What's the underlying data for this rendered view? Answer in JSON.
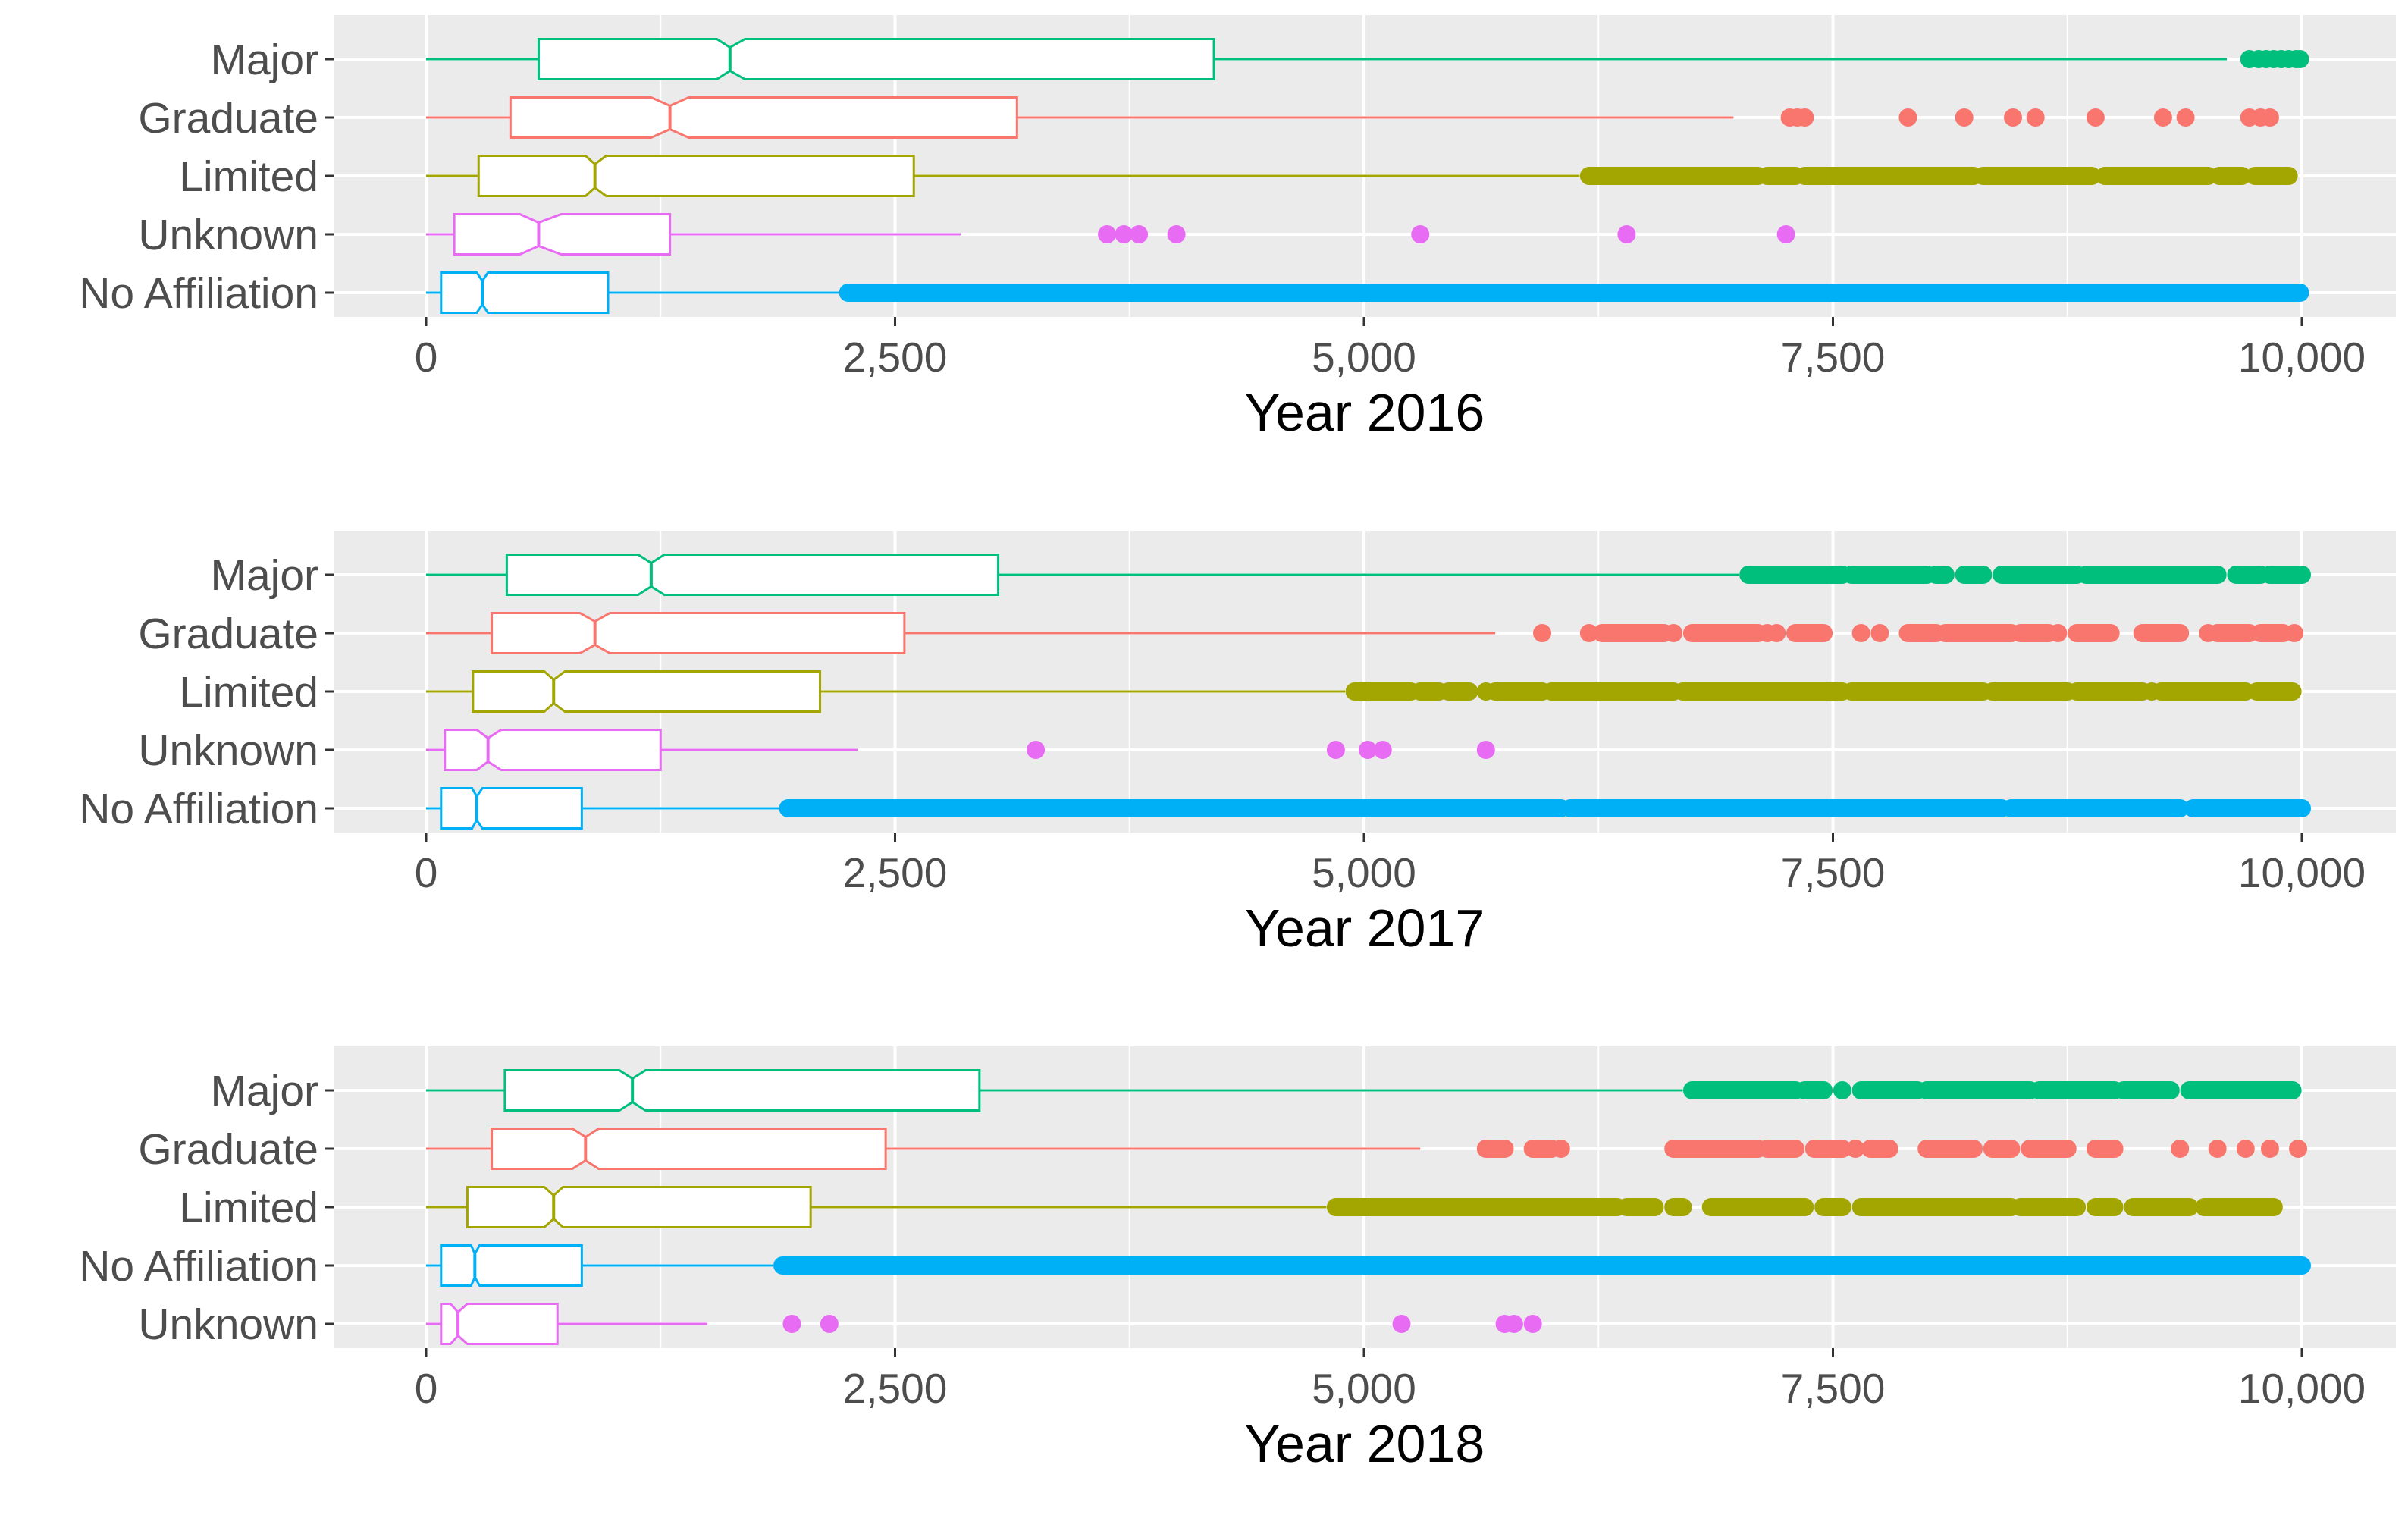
{
  "chart_data": [
    {
      "type": "boxplot",
      "orientation": "horizontal",
      "notched": true,
      "title": "",
      "xlabel": "Year 2016",
      "ylabel": "",
      "xlim": [
        0,
        10000
      ],
      "x_ticks": [
        0,
        2500,
        5000,
        7500,
        10000
      ],
      "x_tick_labels": [
        "0",
        "2,500",
        "5,000",
        "7,500",
        "10,000"
      ],
      "grid": true,
      "legend": "none",
      "categories": [
        "Major",
        "Graduate",
        "Limited",
        "Unknown",
        "No Affiliation"
      ],
      "series": [
        {
          "name": "Major",
          "color": "#00BF7D",
          "min": 0,
          "q1": 600,
          "median": 1620,
          "q3": 4200,
          "max": 9600,
          "notch": [
            1550,
            1700
          ],
          "outliers": [
            9720,
            9770,
            9810,
            9850,
            9890,
            9930,
            9970,
            9990
          ]
        },
        {
          "name": "Graduate",
          "color": "#F8766D",
          "min": 0,
          "q1": 450,
          "median": 1300,
          "q3": 3150,
          "max": 6970,
          "notch": [
            1200,
            1400
          ],
          "outliers": [
            7270,
            7310,
            7350,
            7900,
            8200,
            8460,
            8580,
            8900,
            9260,
            9380,
            9720,
            9780,
            9830
          ]
        },
        {
          "name": "Limited",
          "color": "#A3A500",
          "min": 0,
          "q1": 280,
          "median": 900,
          "q3": 2600,
          "max": 6150,
          "notch": [
            850,
            960
          ],
          "dense_outliers": [
            [
              6200,
              7100
            ],
            [
              7150,
              7300
            ],
            [
              7350,
              8250
            ],
            [
              8300,
              8880
            ],
            [
              8950,
              9500
            ],
            [
              9560,
              9680
            ],
            [
              9750,
              9930
            ]
          ]
        },
        {
          "name": "Unknown",
          "color": "#E76BF3",
          "min": 0,
          "q1": 150,
          "median": 600,
          "q3": 1300,
          "max": 2850,
          "notch": [
            500,
            720
          ],
          "outliers": [
            3630,
            3720,
            3800,
            4000,
            5300,
            6400,
            7250
          ]
        },
        {
          "name": "No Affiliation",
          "color": "#00B0F6",
          "min": 0,
          "q1": 80,
          "median": 300,
          "q3": 970,
          "max": 2200,
          "notch": [
            270,
            330
          ],
          "dense_outliers": [
            [
              2250,
              9990
            ]
          ]
        }
      ]
    },
    {
      "type": "boxplot",
      "orientation": "horizontal",
      "notched": true,
      "title": "",
      "xlabel": "Year 2017",
      "ylabel": "",
      "xlim": [
        0,
        10000
      ],
      "x_ticks": [
        0,
        2500,
        5000,
        7500,
        10000
      ],
      "x_tick_labels": [
        "0",
        "2,500",
        "5,000",
        "7,500",
        "10,000"
      ],
      "grid": true,
      "legend": "none",
      "categories": [
        "Major",
        "Graduate",
        "Limited",
        "Unknown",
        "No Affiliation"
      ],
      "series": [
        {
          "name": "Major",
          "color": "#00BF7D",
          "min": 0,
          "q1": 430,
          "median": 1200,
          "q3": 3050,
          "max": 7000,
          "notch": [
            1130,
            1270
          ],
          "dense_outliers": [
            [
              7050,
              7550
            ],
            [
              7600,
              8000
            ],
            [
              8050,
              8100
            ],
            [
              8200,
              8300
            ],
            [
              8400,
              8800
            ],
            [
              8850,
              9550
            ],
            [
              9650,
              9780
            ],
            [
              9830,
              10000
            ]
          ]
        },
        {
          "name": "Graduate",
          "color": "#F8766D",
          "min": 0,
          "q1": 350,
          "median": 900,
          "q3": 2550,
          "max": 5700,
          "notch": [
            820,
            980
          ],
          "dense_outliers": [
            [
              6270,
              6600
            ],
            [
              6750,
              7100
            ],
            [
              7300,
              7450
            ],
            [
              7900,
              8050
            ],
            [
              8100,
              8450
            ],
            [
              8500,
              8650
            ],
            [
              8800,
              8980
            ],
            [
              9150,
              9350
            ],
            [
              9550,
              9720
            ],
            [
              9780,
              9900
            ]
          ],
          "outliers": [
            5950,
            6200,
            6650,
            7150,
            7200,
            7650,
            7750,
            8700,
            9500,
            9960
          ]
        },
        {
          "name": "Limited",
          "color": "#A3A500",
          "min": 0,
          "q1": 250,
          "median": 680,
          "q3": 2100,
          "max": 4900,
          "notch": [
            630,
            740
          ],
          "dense_outliers": [
            [
              4950,
              5250
            ],
            [
              5300,
              5400
            ],
            [
              5450,
              5560
            ],
            [
              5700,
              5950
            ],
            [
              6000,
              6650
            ],
            [
              6700,
              7550
            ],
            [
              7600,
              8300
            ],
            [
              8350,
              8750
            ],
            [
              8800,
              9150
            ],
            [
              9250,
              9700
            ],
            [
              9760,
              9950
            ]
          ],
          "outliers": [
            5650,
            9200
          ]
        },
        {
          "name": "Unknown",
          "color": "#E76BF3",
          "min": 0,
          "q1": 100,
          "median": 330,
          "q3": 1250,
          "max": 2300,
          "notch": [
            270,
            400
          ],
          "outliers": [
            3250,
            4850,
            5020,
            5100,
            5650
          ]
        },
        {
          "name": "No Affiliation",
          "color": "#00B0F6",
          "min": 0,
          "q1": 80,
          "median": 270,
          "q3": 830,
          "max": 1880,
          "notch": [
            245,
            300
          ],
          "dense_outliers": [
            [
              1930,
              6050
            ],
            [
              6100,
              8400
            ],
            [
              8450,
              9350
            ],
            [
              9420,
              10000
            ]
          ]
        }
      ]
    },
    {
      "type": "boxplot",
      "orientation": "horizontal",
      "notched": true,
      "title": "",
      "xlabel": "Year 2018",
      "ylabel": "",
      "xlim": [
        0,
        10000
      ],
      "x_ticks": [
        0,
        2500,
        5000,
        7500,
        10000
      ],
      "x_tick_labels": [
        "0",
        "2,500",
        "5,000",
        "7,500",
        "10,000"
      ],
      "grid": true,
      "legend": "none",
      "categories": [
        "Major",
        "Graduate",
        "Limited",
        "No Affiliation",
        "Unknown"
      ],
      "series": [
        {
          "name": "Major",
          "color": "#00BF7D",
          "min": 0,
          "q1": 420,
          "median": 1100,
          "q3": 2950,
          "max": 6700,
          "notch": [
            1030,
            1170
          ],
          "dense_outliers": [
            [
              6750,
              7300
            ],
            [
              7350,
              7450
            ],
            [
              7650,
              7950
            ],
            [
              8000,
              8550
            ],
            [
              8600,
              9000
            ],
            [
              9050,
              9300
            ],
            [
              9400,
              9950
            ]
          ],
          "outliers": [
            7550
          ]
        },
        {
          "name": "Graduate",
          "color": "#F8766D",
          "min": 0,
          "q1": 350,
          "median": 850,
          "q3": 2450,
          "max": 5300,
          "notch": [
            780,
            920
          ],
          "dense_outliers": [
            [
              5650,
              5750
            ],
            [
              5900,
              6000
            ],
            [
              6650,
              7100
            ],
            [
              7150,
              7300
            ],
            [
              7400,
              7550
            ],
            [
              7700,
              7800
            ],
            [
              8000,
              8250
            ],
            [
              8350,
              8450
            ],
            [
              8550,
              8750
            ],
            [
              8900,
              9000
            ]
          ],
          "outliers": [
            6050,
            7620,
            9350,
            9550,
            9700,
            9830,
            9980
          ]
        },
        {
          "name": "Limited",
          "color": "#A3A500",
          "min": 0,
          "q1": 220,
          "median": 680,
          "q3": 2050,
          "max": 4800,
          "notch": [
            630,
            730
          ],
          "dense_outliers": [
            [
              4850,
              6350
            ],
            [
              6400,
              6550
            ],
            [
              6650,
              6700
            ],
            [
              6850,
              7350
            ],
            [
              7450,
              7550
            ],
            [
              7650,
              8450
            ],
            [
              8500,
              8800
            ],
            [
              8900,
              9000
            ],
            [
              9100,
              9400
            ],
            [
              9480,
              9850
            ]
          ]
        },
        {
          "name": "No Affiliation",
          "color": "#00B0F6",
          "min": 0,
          "q1": 80,
          "median": 260,
          "q3": 830,
          "max": 1850,
          "notch": [
            240,
            285
          ],
          "dense_outliers": [
            [
              1900,
              10000
            ]
          ]
        },
        {
          "name": "Unknown",
          "color": "#E76BF3",
          "min": 0,
          "q1": 80,
          "median": 170,
          "q3": 700,
          "max": 1500,
          "notch": [
            130,
            220
          ],
          "outliers": [
            1950,
            2150,
            5200,
            5750,
            5800,
            5900
          ]
        }
      ]
    }
  ]
}
